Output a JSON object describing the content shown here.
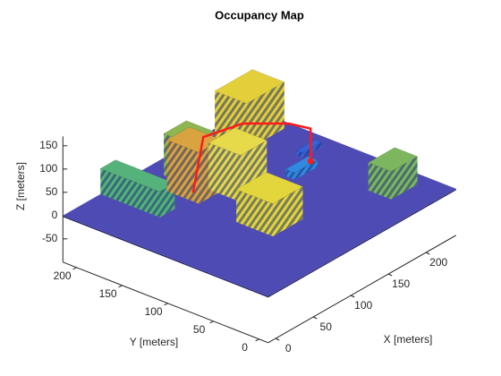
{
  "chart_data": {
    "type": "occupancy3d",
    "title": "Occupancy Map",
    "xlabel": "X [meters]",
    "ylabel": "Y [meters]",
    "zlabel": "Z [meters]",
    "xlim": [
      -10,
      240
    ],
    "ylim": [
      -10,
      215
    ],
    "zlim": [
      -100,
      170
    ],
    "xticks": [
      0,
      50,
      100,
      150,
      200
    ],
    "yticks": [
      0,
      50,
      100,
      150,
      200
    ],
    "zticks": [
      -50,
      0,
      50,
      100,
      150
    ],
    "ground_color": "#4f4bb5",
    "buildings": [
      {
        "x": [
          180,
          230
        ],
        "y": [
          170,
          205
        ],
        "height": 100,
        "color": "#e2cf3a"
      },
      {
        "x": [
          100,
          130
        ],
        "y": [
          165,
          195
        ],
        "height": 90,
        "color": "#8db552"
      },
      {
        "x": [
          40,
          60
        ],
        "y": [
          150,
          215
        ],
        "height": 55,
        "color": "#55b27a"
      },
      {
        "x": [
          80,
          110
        ],
        "y": [
          140,
          175
        ],
        "height": 110,
        "color": "#d9a43f"
      },
      {
        "x": [
          105,
          140
        ],
        "y": [
          115,
          150
        ],
        "height": 100,
        "color": "#e6d94a"
      },
      {
        "x": [
          200,
          225
        ],
        "y": [
          125,
          132
        ],
        "height": 10,
        "color": "#3562d6"
      },
      {
        "x": [
          165,
          195
        ],
        "y": [
          105,
          115
        ],
        "height": 15,
        "color": "#2f8ae0"
      },
      {
        "x": [
          75,
          115
        ],
        "y": [
          55,
          95
        ],
        "height": 70,
        "color": "#e3d63c"
      },
      {
        "x": [
          190,
          225
        ],
        "y": [
          20,
          45
        ],
        "height": 60,
        "color": "#7cb760"
      }
    ],
    "path": {
      "color": "#ff1a1a",
      "x": [
        60,
        110,
        150,
        175,
        180,
        180
      ],
      "y": [
        130,
        160,
        150,
        120,
        100,
        100
      ],
      "z": [
        50,
        100,
        100,
        100,
        100,
        30
      ]
    }
  }
}
